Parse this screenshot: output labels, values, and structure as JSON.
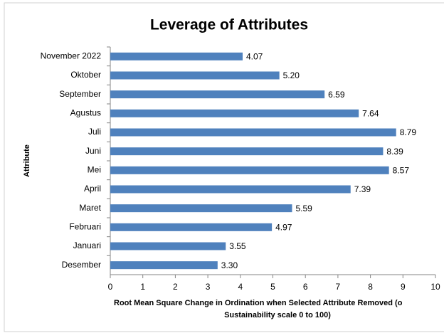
{
  "chart_data": {
    "type": "bar",
    "orientation": "horizontal",
    "title": "Leverage of Attributes",
    "ylabel": "Attribute",
    "xlabel": [
      "Root Mean Square Change in Ordination when Selected Attribute Removed (o",
      "Sustainability scale 0 to 100)"
    ],
    "categories": [
      "November 2022",
      "Oktober",
      "September",
      "Agustus",
      "Juli",
      "Juni",
      "Mei",
      "April",
      "Maret",
      "Februari",
      "Januari",
      "Desember"
    ],
    "values": [
      4.07,
      5.2,
      6.59,
      7.64,
      8.79,
      8.39,
      8.57,
      7.39,
      5.59,
      4.97,
      3.55,
      3.3
    ],
    "value_labels": [
      "4.07",
      "5.20",
      "6.59",
      "7.64",
      "8.79",
      "8.39",
      "8.57",
      "7.39",
      "5.59",
      "4.97",
      "3.55",
      "3.30"
    ],
    "color": "#4f81bd",
    "xlim": [
      0,
      10
    ],
    "xticks": [
      0,
      1,
      2,
      3,
      4,
      5,
      6,
      7,
      8,
      9,
      10
    ],
    "grid": false
  }
}
